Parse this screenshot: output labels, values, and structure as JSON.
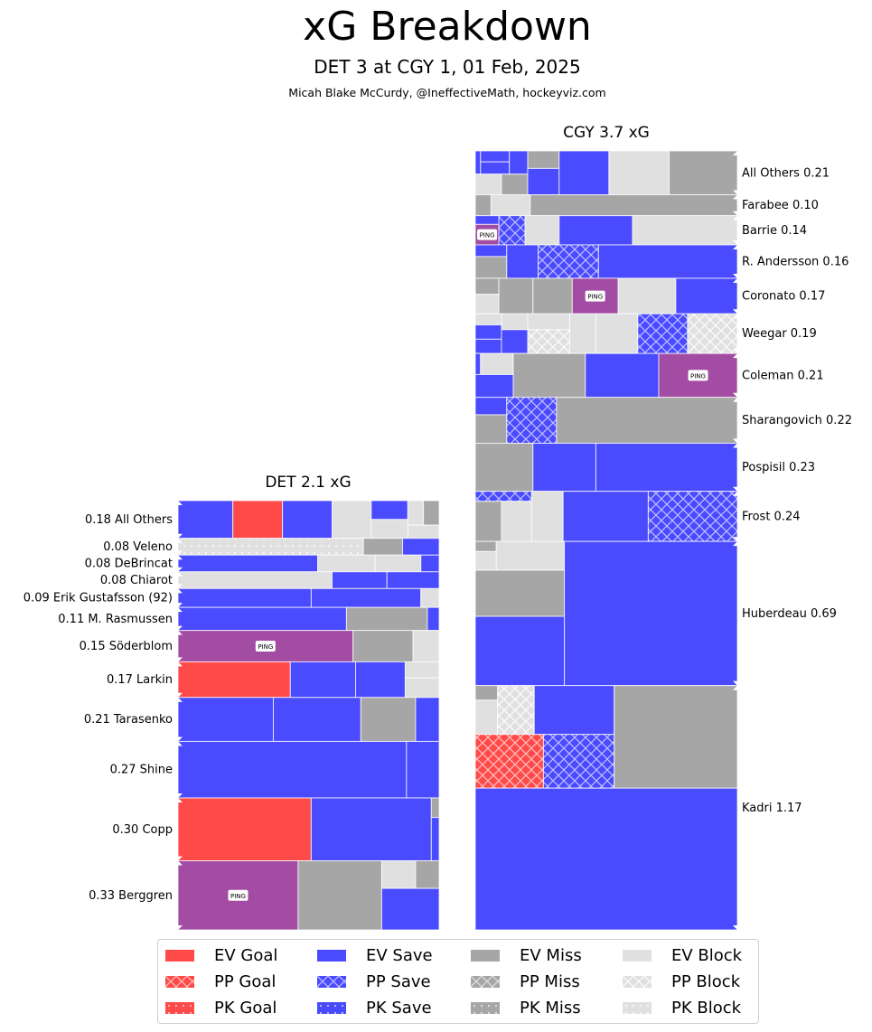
{
  "header": {
    "title": "xG Breakdown",
    "subtitle": "DET 3 at CGY 1, 01 Feb, 2025",
    "byline": "Micah Blake McCurdy, @IneffectiveMath, hockeyviz.com"
  },
  "colors": {
    "goal": "#ff4a4a",
    "save": "#4a4aff",
    "miss": "#a6a6a6",
    "block": "#e0e0e0",
    "ping": "#a34ca3"
  },
  "chart_data": [
    {
      "type": "treemap-bar",
      "title": "DET 2.1 xG",
      "team": "DET",
      "total_xg": 2.1,
      "label_side": "left",
      "players": [
        {
          "label": "0.18 All Others",
          "xg": 0.18
        },
        {
          "label": "0.08 Veleno",
          "xg": 0.08
        },
        {
          "label": "0.08 DeBrincat",
          "xg": 0.08
        },
        {
          "label": "0.08 Chiarot",
          "xg": 0.08
        },
        {
          "label": "0.09 Erik Gustafsson (92)",
          "xg": 0.09
        },
        {
          "label": "0.11 M. Rasmussen",
          "xg": 0.11
        },
        {
          "label": "0.15 Söderblom",
          "xg": 0.15
        },
        {
          "label": "0.17 Larkin",
          "xg": 0.17
        },
        {
          "label": "0.21 Tarasenko",
          "xg": 0.21
        },
        {
          "label": "0.27 Shine",
          "xg": 0.27
        },
        {
          "label": "0.30 Copp",
          "xg": 0.3
        },
        {
          "label": "0.33 Berggren",
          "xg": 0.33
        }
      ]
    },
    {
      "type": "treemap-bar",
      "title": "CGY 3.7 xG",
      "team": "CGY",
      "total_xg": 3.7,
      "label_side": "right",
      "players": [
        {
          "label": "All Others 0.21",
          "xg": 0.21
        },
        {
          "label": "Farabee 0.10",
          "xg": 0.1
        },
        {
          "label": "Barrie 0.14",
          "xg": 0.14
        },
        {
          "label": "R. Andersson 0.16",
          "xg": 0.16
        },
        {
          "label": "Coronato 0.17",
          "xg": 0.17
        },
        {
          "label": "Weegar 0.19",
          "xg": 0.19
        },
        {
          "label": "Coleman 0.21",
          "xg": 0.21
        },
        {
          "label": "Sharangovich 0.22",
          "xg": 0.22
        },
        {
          "label": "Pospisil 0.23",
          "xg": 0.23
        },
        {
          "label": "Frost 0.24",
          "xg": 0.24
        },
        {
          "label": "Huberdeau 0.69",
          "xg": 0.69
        },
        {
          "label": "Kadri 1.17",
          "xg": 1.17
        }
      ]
    }
  ],
  "ping_label": "PING",
  "legend": [
    {
      "label": "EV Goal",
      "kind": "goal",
      "situation": "EV"
    },
    {
      "label": "PP Goal",
      "kind": "goal",
      "situation": "PP"
    },
    {
      "label": "PK Goal",
      "kind": "goal",
      "situation": "PK"
    },
    {
      "label": "EV Save",
      "kind": "save",
      "situation": "EV"
    },
    {
      "label": "PP Save",
      "kind": "save",
      "situation": "PP"
    },
    {
      "label": "PK Save",
      "kind": "save",
      "situation": "PK"
    },
    {
      "label": "EV Miss",
      "kind": "miss",
      "situation": "EV"
    },
    {
      "label": "PP Miss",
      "kind": "miss",
      "situation": "PP"
    },
    {
      "label": "PK Miss",
      "kind": "miss",
      "situation": "PK"
    },
    {
      "label": "EV Block",
      "kind": "block",
      "situation": "EV"
    },
    {
      "label": "PP Block",
      "kind": "block",
      "situation": "PP"
    },
    {
      "label": "PK Block",
      "kind": "block",
      "situation": "PK"
    }
  ]
}
